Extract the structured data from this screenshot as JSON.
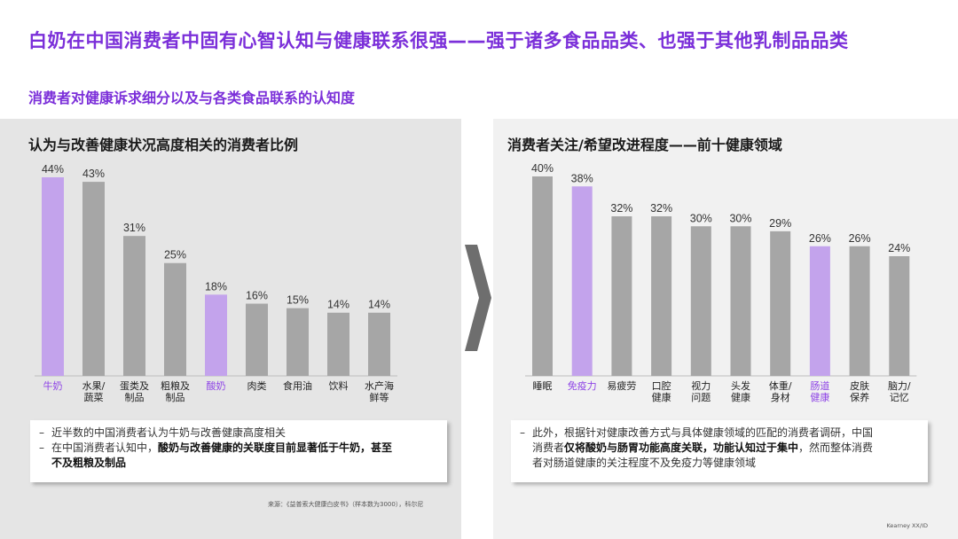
{
  "title": "白奶在中国消费者中固有心智认知与健康联系很强——强于诸多食品品类、也强于其他乳制品品类",
  "subtitle": "消费者对健康诉求细分以及与各类食品联系的认知度",
  "colors": {
    "accent": "#7b2fd9",
    "highlight_bar": "#c3a3ec",
    "bar": "#a6a6a6",
    "highlight_label": "#8e44e6"
  },
  "chart_data": [
    {
      "type": "bar",
      "title": "认为与改善健康状况高度相关的消费者比例",
      "categories": [
        "牛奶",
        "水果/蔬菜",
        "蛋类及制品",
        "粗粮及制品",
        "酸奶",
        "肉类",
        "食用油",
        "饮料",
        "水产海鲜等"
      ],
      "category_lines": [
        [
          "牛奶"
        ],
        [
          "水果/",
          "蔬菜"
        ],
        [
          "蛋类及",
          "制品"
        ],
        [
          "粗粮及",
          "制品"
        ],
        [
          "酸奶"
        ],
        [
          "肉类"
        ],
        [
          "食用油"
        ],
        [
          "饮料"
        ],
        [
          "水产海",
          "鲜等"
        ]
      ],
      "values": [
        44,
        43,
        31,
        25,
        18,
        16,
        15,
        14,
        14
      ],
      "labels": [
        "44%",
        "43%",
        "31%",
        "25%",
        "18%",
        "16%",
        "15%",
        "14%",
        "14%"
      ],
      "highlight": [
        0,
        4
      ],
      "unit": "%",
      "ylim": [
        0,
        44
      ]
    },
    {
      "type": "bar",
      "title": "消费者关注/希望改进程度——前十健康领域",
      "categories": [
        "睡眠",
        "免疫力",
        "易疲劳",
        "口腔健康",
        "视力问题",
        "头发健康",
        "体重/身材",
        "肠道健康",
        "皮肤保养",
        "脑力/记忆"
      ],
      "category_lines": [
        [
          "睡眠"
        ],
        [
          "免疫力"
        ],
        [
          "易疲劳"
        ],
        [
          "口腔",
          "健康"
        ],
        [
          "视力",
          "问题"
        ],
        [
          "头发",
          "健康"
        ],
        [
          "体重/",
          "身材"
        ],
        [
          "肠道",
          "健康"
        ],
        [
          "皮肤",
          "保养"
        ],
        [
          "脑力/",
          "记忆"
        ]
      ],
      "values": [
        40,
        38,
        32,
        32,
        30,
        30,
        29,
        26,
        26,
        24
      ],
      "labels": [
        "40%",
        "38%",
        "32%",
        "32%",
        "30%",
        "30%",
        "29%",
        "26%",
        "26%",
        "24%"
      ],
      "highlight": [
        1,
        7
      ],
      "unit": "%",
      "ylim": [
        0,
        40
      ]
    }
  ],
  "notes": {
    "left": {
      "line1": "近半数的中国消费者认为牛奶与改善健康高度相关",
      "line2_pre": "在中国消费者认知中，",
      "line2_bold": "酸奶与改善健康的关联度目前显著低于牛奶，甚至",
      "line3_bold": "不及粗粮及制品"
    },
    "right": {
      "line1": "此外，根据针对健康改善方式与具体健康领域的匹配的消费者调研，中国",
      "line2_pre": "消费者",
      "line2_bold": "仅将酸奶与肠胃功能高度关联，功能认知过于集中",
      "line2_post": "，然而整体消费",
      "line3": "者对肠道健康的关注程度不及免疫力等健康领域"
    },
    "dash": "–"
  },
  "source": "来源：《益普索大健康白皮书》（样本数为3000），科尔尼",
  "footer": "Kearney XX/ID"
}
